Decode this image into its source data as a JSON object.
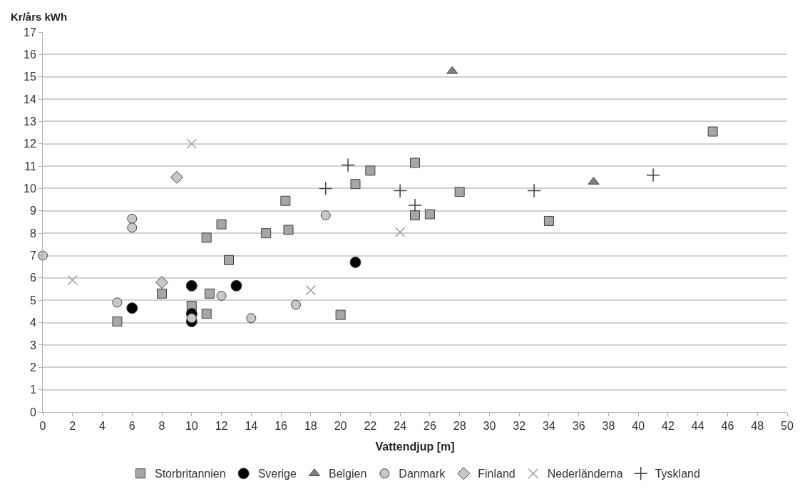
{
  "chart_data": {
    "type": "scatter",
    "ylabel": "Kr/års kWh",
    "xlabel": "Vattendjup [m]",
    "xlim": [
      0,
      50
    ],
    "xticks": [
      0,
      2,
      4,
      6,
      8,
      10,
      12,
      14,
      16,
      18,
      20,
      22,
      24,
      26,
      28,
      30,
      32,
      34,
      36,
      38,
      40,
      42,
      44,
      46,
      48,
      50
    ],
    "ylim": [
      0,
      17
    ],
    "yticks": [
      0,
      1,
      2,
      3,
      4,
      5,
      6,
      7,
      8,
      9,
      10,
      11,
      12,
      13,
      14,
      15,
      16,
      17
    ],
    "grid": "y",
    "legend": "bottom",
    "series": [
      {
        "name": "Storbritannien",
        "color": "#a6a6a6",
        "marker": "square",
        "x": [
          5,
          8,
          10,
          11,
          11.2,
          11,
          12,
          12.5,
          15,
          16.3,
          16.5,
          20,
          21,
          22,
          25,
          25,
          26,
          28,
          34,
          45
        ],
        "values": [
          4.05,
          5.3,
          4.75,
          4.4,
          5.3,
          7.8,
          8.4,
          6.8,
          8.0,
          9.45,
          8.15,
          4.35,
          10.2,
          10.8,
          11.15,
          8.8,
          8.85,
          9.85,
          8.55,
          12.55
        ]
      },
      {
        "name": "Sverige",
        "color": "#000000",
        "marker": "circle",
        "x": [
          6,
          10,
          10,
          10,
          13,
          21
        ],
        "values": [
          4.65,
          5.65,
          4.4,
          4.05,
          5.65,
          6.7
        ]
      },
      {
        "name": "Belgien",
        "color": "#808080",
        "marker": "triangle",
        "x": [
          27.5,
          37
        ],
        "values": [
          15.25,
          10.3
        ]
      },
      {
        "name": "Danmark",
        "color": "#c8c8c8",
        "marker": "circle",
        "x": [
          0,
          5,
          6,
          6,
          10,
          12,
          14,
          17,
          19
        ],
        "values": [
          7.0,
          4.9,
          8.65,
          8.25,
          4.2,
          5.2,
          4.2,
          4.8,
          8.8
        ]
      },
      {
        "name": "Finland",
        "color": "#c8c8c8",
        "marker": "diamond",
        "x": [
          8,
          9
        ],
        "values": [
          5.8,
          10.5
        ]
      },
      {
        "name": "Nederländerna",
        "color": "#a0a0a0",
        "marker": "cross",
        "x": [
          2,
          10,
          18,
          24
        ],
        "values": [
          5.9,
          12.0,
          5.45,
          8.05
        ]
      },
      {
        "name": "Tyskland",
        "color": "#404040",
        "marker": "plus",
        "x": [
          19,
          20.5,
          24,
          25,
          33,
          41
        ],
        "values": [
          10.0,
          11.05,
          9.9,
          9.25,
          9.9,
          10.6
        ]
      }
    ]
  }
}
